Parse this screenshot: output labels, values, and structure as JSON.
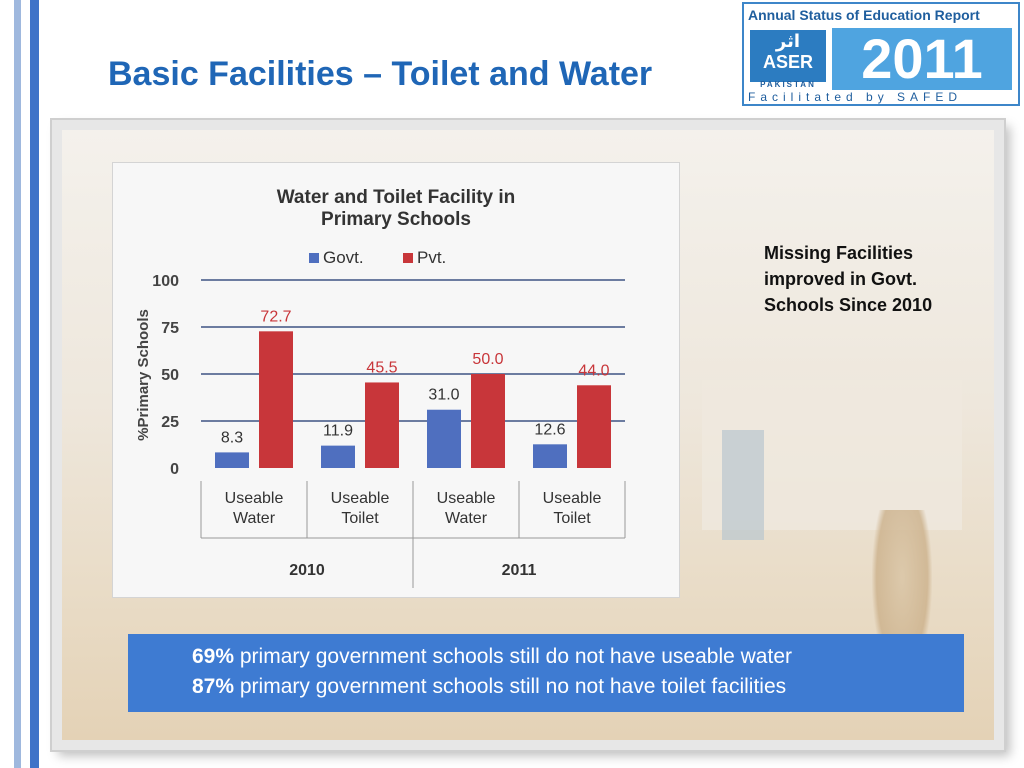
{
  "slide": {
    "title": "Basic Facilities – Toilet and Water",
    "note": "Missing Facilities improved in Govt. Schools Since 2010",
    "stats": [
      {
        "value": "69%",
        "text": "primary government schools still do not have useable water"
      },
      {
        "value": "87%",
        "text": "primary government schools still no not have toilet facilities"
      }
    ]
  },
  "logo": {
    "top_text": "Annual Status of Education Report",
    "urdu": "اثر",
    "brand": "ASER",
    "country": "PAKISTAN",
    "year": "2011",
    "facilitated": "Facilitated by SAFED"
  },
  "colors": {
    "title": "#1f66b6",
    "govt": "#4f6fbf",
    "pvt": "#c8363a",
    "stats_bg": "#3e7bd2",
    "stripe": "#3f73c8"
  },
  "chart_data": {
    "type": "bar",
    "title": "Water and Toilet Facility in Primary Schools",
    "ylabel": "%Primary Schools",
    "xlabel": "",
    "ylim": [
      0,
      100
    ],
    "yticks": [
      0,
      25,
      50,
      75,
      100
    ],
    "grid": true,
    "legend_position": "top",
    "categories": [
      "Useable Water",
      "Useable Toilet",
      "Useable Water",
      "Useable Toilet"
    ],
    "groups": [
      "2010",
      "2011"
    ],
    "series": [
      {
        "name": "Govt.",
        "values": [
          8.3,
          11.9,
          31.0,
          12.6
        ],
        "labels": [
          "8.3",
          "11.9",
          "31.0",
          "12.6"
        ]
      },
      {
        "name": "Pvt.",
        "values": [
          72.7,
          45.5,
          50.0,
          44.0
        ],
        "labels": [
          "72.7",
          "45.5",
          "50.0",
          "44.0"
        ]
      }
    ]
  }
}
